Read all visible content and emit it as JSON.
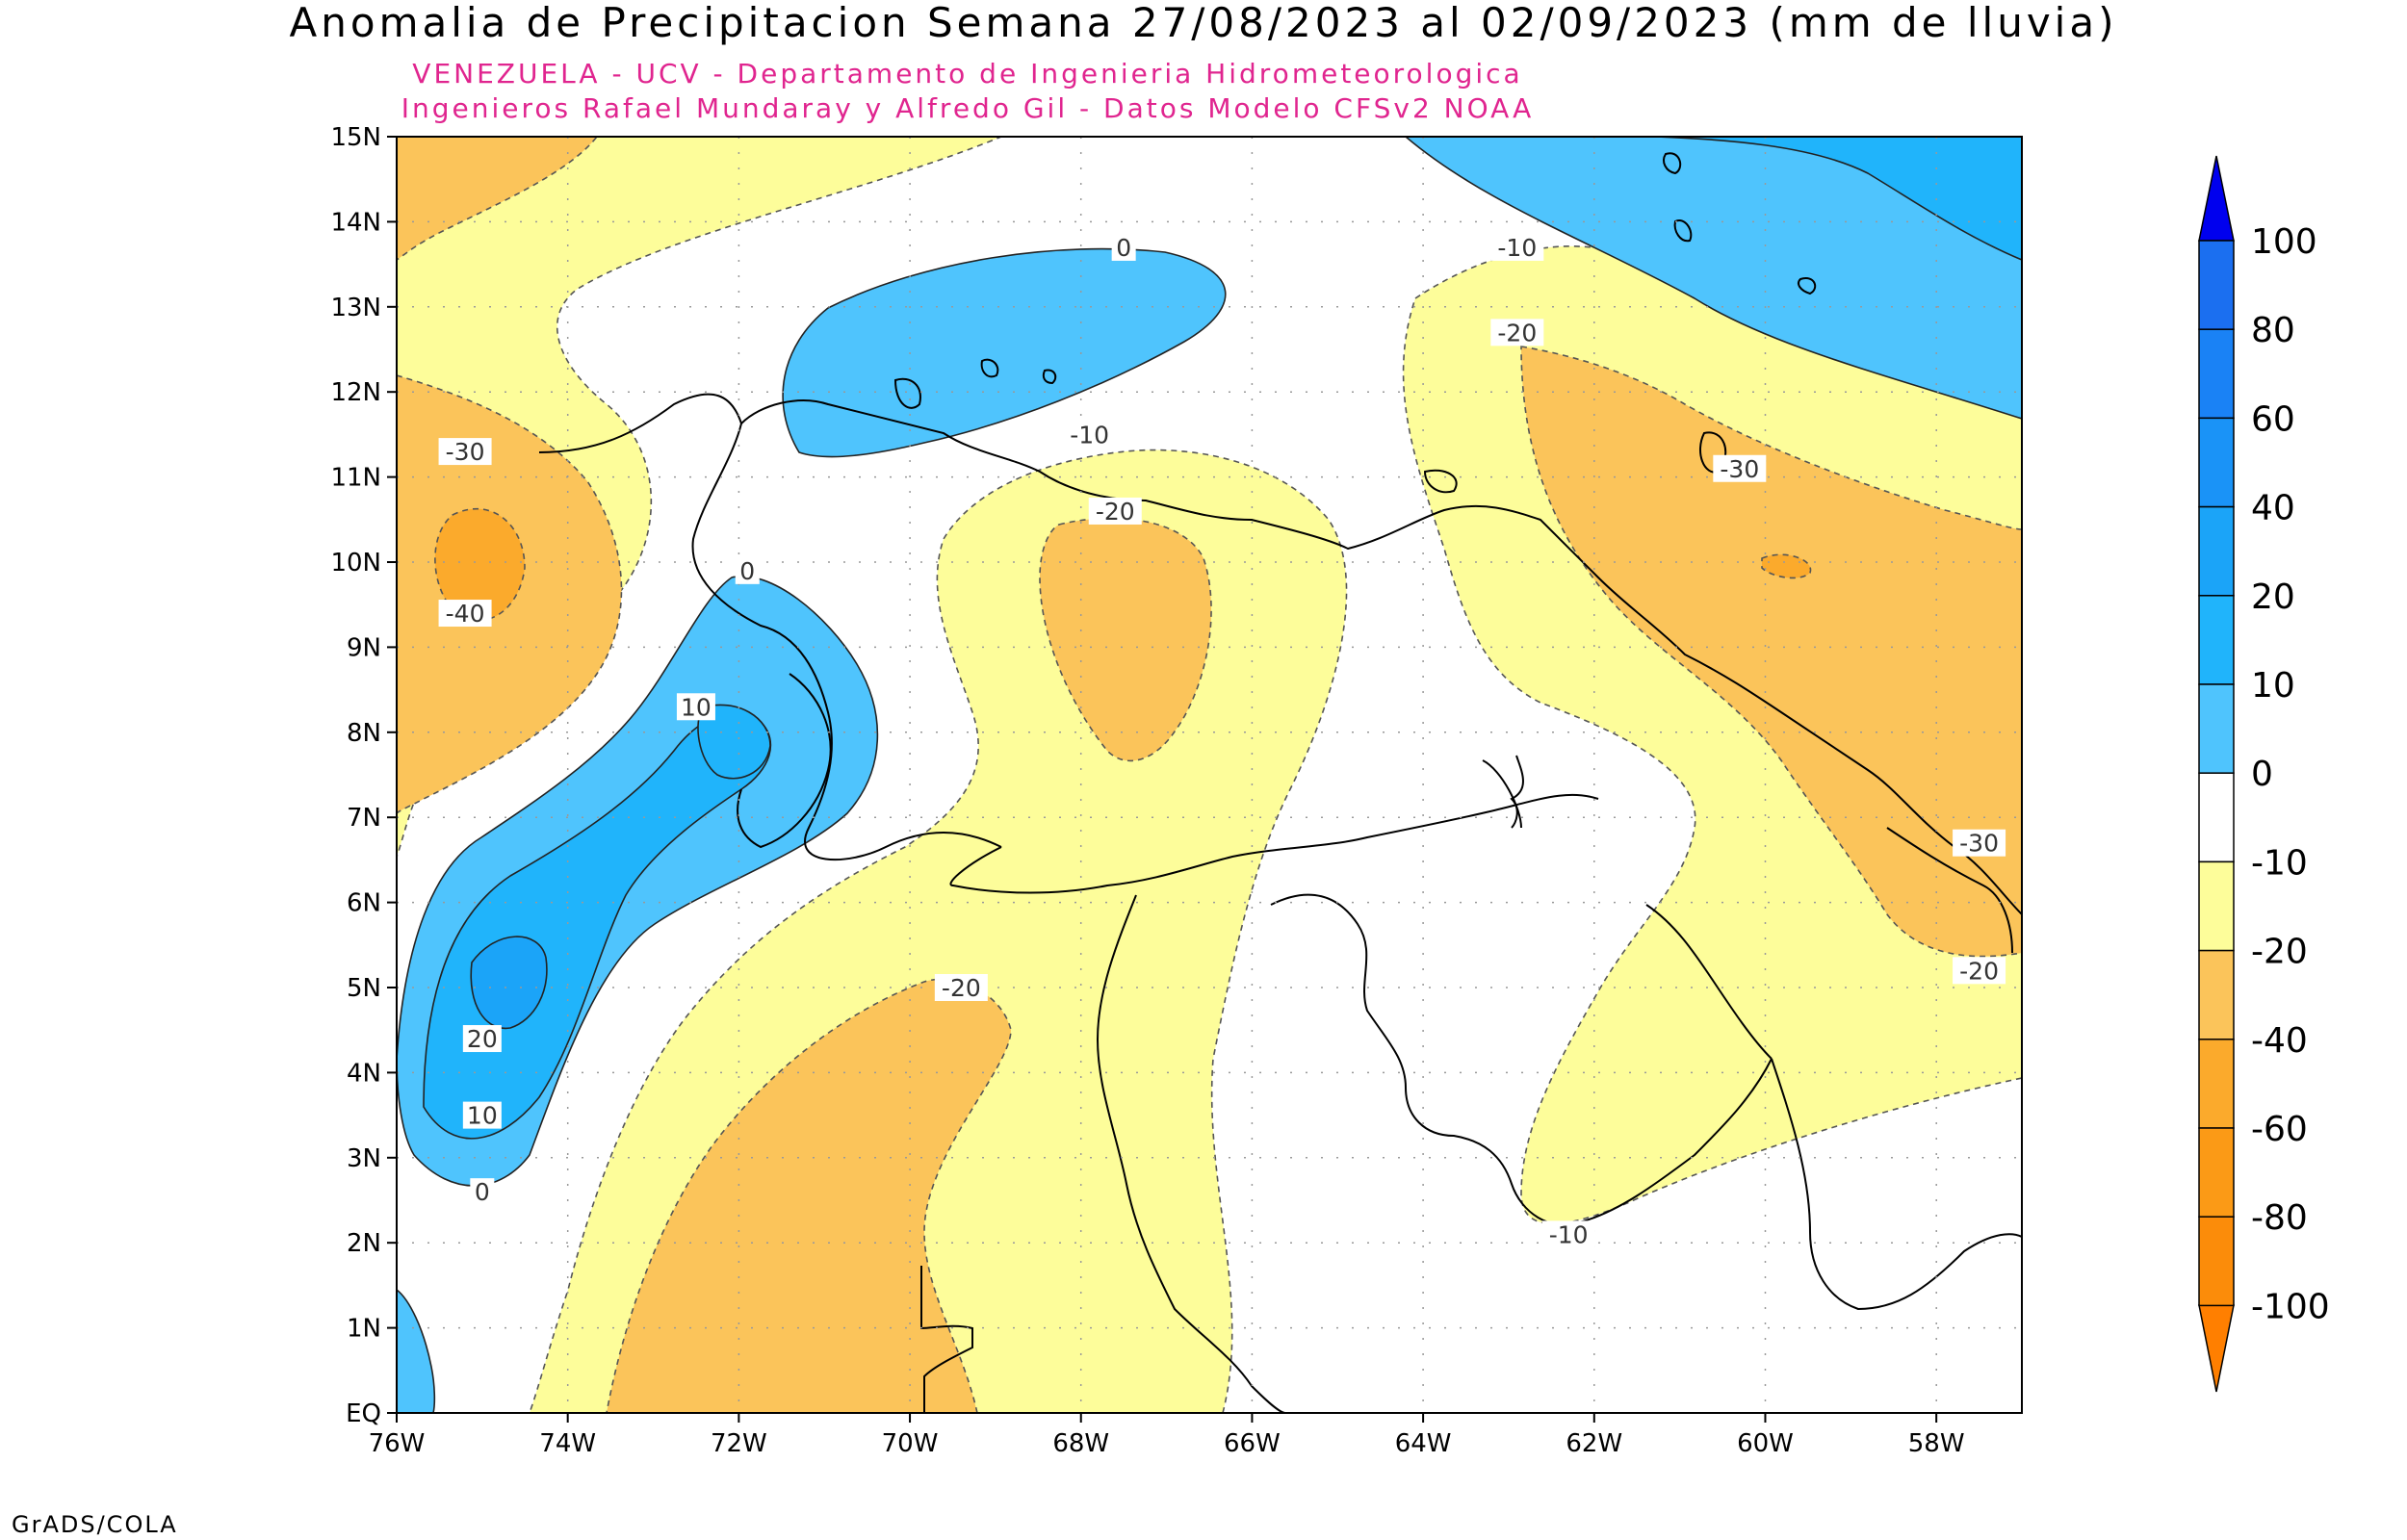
{
  "header": {
    "title": "Anomalia de Precipitacion Semana 27/08/2023 al 02/09/2023 (mm de lluvia)",
    "subtitle_1": "VENEZUELA - UCV - Departamento de Ingenieria Hidrometeorologica",
    "subtitle_2": "Ingenieros Rafael Mundaray y Alfredo Gil - Datos Modelo CFSv2 NOAA",
    "subtitle_color": "#e0258f"
  },
  "credit": "GrADS/COLA",
  "axes": {
    "lon_range": [
      -76,
      -57
    ],
    "lat_range": [
      0,
      15
    ],
    "x_ticks": [
      "76W",
      "74W",
      "72W",
      "70W",
      "68W",
      "66W",
      "64W",
      "62W",
      "60W",
      "58W"
    ],
    "y_ticks": [
      "EQ",
      "1N",
      "2N",
      "3N",
      "4N",
      "5N",
      "6N",
      "7N",
      "8N",
      "9N",
      "10N",
      "11N",
      "12N",
      "13N",
      "14N",
      "15N"
    ]
  },
  "colorbar": {
    "labels": [
      "100",
      "80",
      "60",
      "40",
      "20",
      "10",
      "0",
      "-10",
      "-20",
      "-40",
      "-60",
      "-80",
      "-100"
    ],
    "colors": [
      "#1b6ff0",
      "#1a82f5",
      "#1a93f7",
      "#1ba4f8",
      "#20b4fb",
      "#4fc4fd",
      "#ffffff",
      "#fdfd9a",
      "#fbc45a",
      "#fbaa2c",
      "#fb9a16",
      "#fb8c0a"
    ],
    "top_cap": "#0000ee",
    "bottom_cap": "#ff7f00"
  },
  "contour_labels": [
    {
      "text": "0",
      "lon": -67.5,
      "lat": 13.7
    },
    {
      "text": "-10",
      "lon": -62.9,
      "lat": 13.7
    },
    {
      "text": "-20",
      "lon": -62.9,
      "lat": 12.7
    },
    {
      "text": "-30",
      "lon": -60.3,
      "lat": 11.1
    },
    {
      "text": "-30",
      "lon": -75.2,
      "lat": 11.3
    },
    {
      "text": "-40",
      "lon": -75.2,
      "lat": 9.4
    },
    {
      "text": "-10",
      "lon": -67.9,
      "lat": 11.5
    },
    {
      "text": "-20",
      "lon": -67.6,
      "lat": 10.6
    },
    {
      "text": "0",
      "lon": -71.9,
      "lat": 9.9
    },
    {
      "text": "10",
      "lon": -72.5,
      "lat": 8.3
    },
    {
      "text": "20",
      "lon": -75.0,
      "lat": 4.4
    },
    {
      "text": "10",
      "lon": -75.0,
      "lat": 3.5
    },
    {
      "text": "0",
      "lon": -75.0,
      "lat": 2.6
    },
    {
      "text": "-20",
      "lon": -69.4,
      "lat": 5.0
    },
    {
      "text": "-30",
      "lon": -57.5,
      "lat": 6.7
    },
    {
      "text": "-20",
      "lon": -57.5,
      "lat": 5.2
    },
    {
      "text": "-10",
      "lon": -62.3,
      "lat": 2.1
    }
  ]
}
